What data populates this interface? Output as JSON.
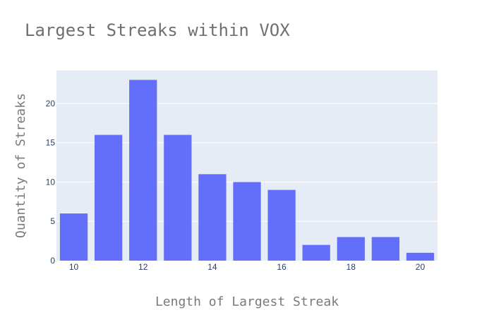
{
  "chart_data": {
    "type": "bar",
    "title": "Largest Streaks within VOX",
    "xlabel": "Length of Largest Streak",
    "ylabel": "Quantity of Streaks",
    "x": [
      10,
      11,
      12,
      13,
      14,
      15,
      16,
      17,
      18,
      19,
      20
    ],
    "values": [
      6,
      16,
      23,
      16,
      11,
      10,
      9,
      2,
      3,
      3,
      1
    ],
    "xticks": [
      10,
      12,
      14,
      16,
      18,
      20
    ],
    "yticks": [
      0,
      5,
      10,
      15,
      20
    ],
    "xlim": [
      9.5,
      20.5
    ],
    "ylim": [
      0,
      24.2
    ],
    "grid": true,
    "colors": {
      "bar": "#636efa",
      "plot_bg": "#e5ecf6",
      "grid": "#ffffff"
    }
  }
}
